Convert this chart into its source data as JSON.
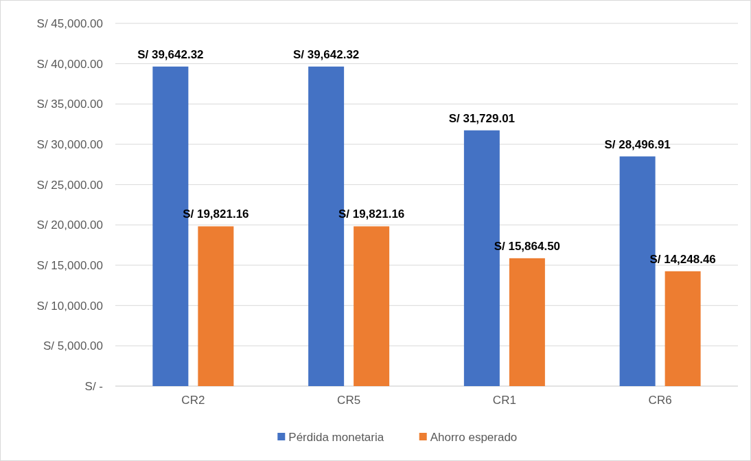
{
  "chart_data": {
    "type": "bar",
    "categories": [
      "CR2",
      "CR5",
      "CR1",
      "CR6"
    ],
    "series": [
      {
        "name": "Pérdida monetaria",
        "color": "#4472c4",
        "values": [
          39642.32,
          39642.32,
          31729.01,
          28496.91
        ],
        "value_labels": [
          "S/ 39,642.32",
          "S/ 39,642.32",
          "S/ 31,729.01",
          "S/ 28,496.91"
        ]
      },
      {
        "name": "Ahorro esperado",
        "color": "#ed7d31",
        "values": [
          19821.16,
          19821.16,
          15864.5,
          14248.46
        ],
        "value_labels": [
          "S/ 19,821.16",
          "S/ 19,821.16",
          "S/ 15,864.50",
          "S/ 14,248.46"
        ]
      }
    ],
    "ylim": [
      0,
      45000
    ],
    "yticks": [
      {
        "value": 0,
        "label": "S/ -"
      },
      {
        "value": 5000,
        "label": "S/ 5,000.00"
      },
      {
        "value": 10000,
        "label": "S/ 10,000.00"
      },
      {
        "value": 15000,
        "label": "S/ 15,000.00"
      },
      {
        "value": 20000,
        "label": "S/ 20,000.00"
      },
      {
        "value": 25000,
        "label": "S/ 25,000.00"
      },
      {
        "value": 30000,
        "label": "S/ 30,000.00"
      },
      {
        "value": 35000,
        "label": "S/ 35,000.00"
      },
      {
        "value": 40000,
        "label": "S/ 40,000.00"
      },
      {
        "value": 45000,
        "label": "S/ 45,000.00"
      }
    ],
    "grid": "y",
    "legend": "bottom"
  }
}
